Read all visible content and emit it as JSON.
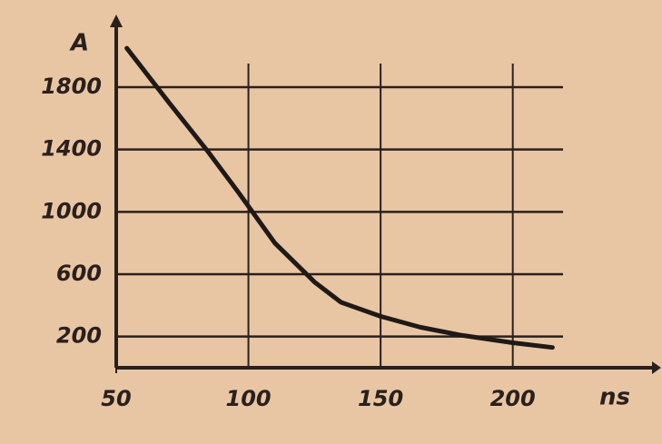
{
  "chart_data": {
    "type": "line",
    "x_label": "ns",
    "y_label": "A",
    "x": [
      54,
      70,
      85,
      96,
      110,
      125,
      135,
      150,
      165,
      180,
      200,
      215
    ],
    "series": [
      {
        "name": "A",
        "color": "#1f1917",
        "values": [
          2050,
          1700,
          1380,
          1130,
          800,
          550,
          420,
          330,
          260,
          210,
          160,
          130
        ]
      }
    ],
    "xlim": [
      50,
      230
    ],
    "xticks": [
      50,
      100,
      150,
      200
    ],
    "ylim": [
      0,
      2100
    ],
    "yticks": [
      200,
      600,
      1000,
      1400,
      1800
    ],
    "grid": true
  }
}
